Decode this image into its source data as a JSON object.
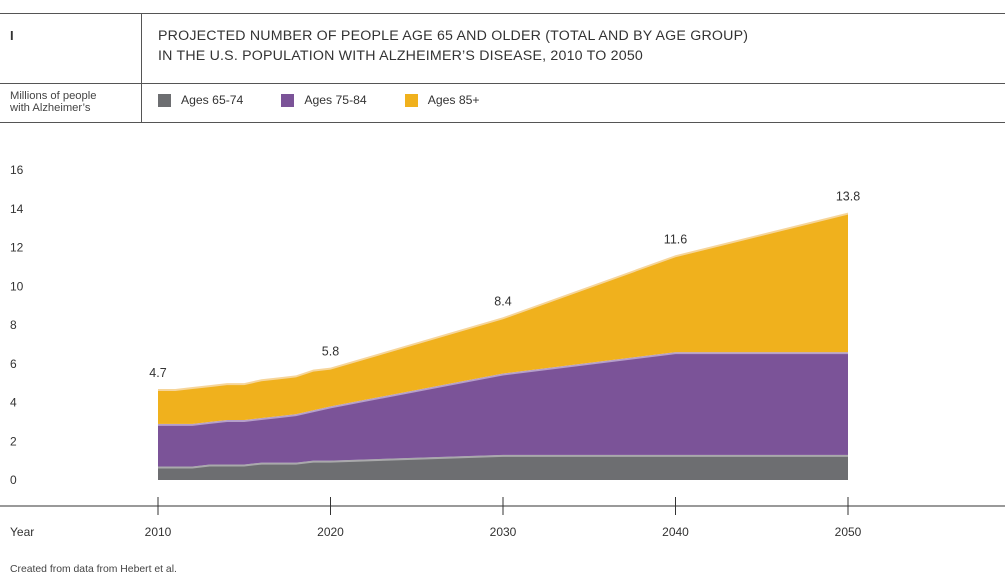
{
  "header": {
    "figure_number": "I",
    "title_line1": "PROJECTED NUMBER OF PEOPLE AGE 65 AND OLDER (TOTAL AND BY AGE GROUP)",
    "title_line2": "IN THE U.S. POPULATION WITH ALZHEIMER’S DISEASE, 2010 TO 2050",
    "ylabel_line1": "Millions of people",
    "ylabel_line2": "with Alzheimer’s"
  },
  "footer": {
    "note": "Created from data from Hebert et al."
  },
  "colors": {
    "ages_65_74": "#6d6e71",
    "ages_75_84": "#7b5398",
    "ages_85_plus": "#f0b11d",
    "band_65_74": "#a9a9ab",
    "band_75_84": "#b59fca",
    "band_85_plus": "#f6d59a"
  },
  "chart_data": {
    "type": "area",
    "stacked": true,
    "title": "PROJECTED NUMBER OF PEOPLE AGE 65 AND OLDER (TOTAL AND BY AGE GROUP) IN THE U.S. POPULATION WITH ALZHEIMER’S DISEASE, 2010 TO 2050",
    "xlabel": "Year",
    "ylabel": "Millions of people with Alzheimer’s",
    "ylim": [
      0,
      16
    ],
    "yticks": [
      0,
      2,
      4,
      6,
      8,
      10,
      12,
      14,
      16
    ],
    "xticks": [
      2010,
      2020,
      2030,
      2040,
      2050
    ],
    "xlim": [
      2010,
      2050
    ],
    "grid": false,
    "legend_position": "top",
    "x": [
      2010,
      2011,
      2012,
      2013,
      2014,
      2015,
      2016,
      2017,
      2018,
      2019,
      2020,
      2030,
      2040,
      2050
    ],
    "series": [
      {
        "name": "Ages 65-74",
        "values": [
          0.7,
          0.7,
          0.7,
          0.8,
          0.8,
          0.8,
          0.9,
          0.9,
          0.9,
          1.0,
          1.0,
          1.3,
          1.3,
          1.3
        ]
      },
      {
        "name": "Ages 75-84",
        "values": [
          2.2,
          2.2,
          2.2,
          2.2,
          2.3,
          2.3,
          2.3,
          2.4,
          2.5,
          2.6,
          2.8,
          4.2,
          5.3,
          5.3
        ]
      },
      {
        "name": "Ages 85+",
        "values": [
          1.8,
          1.8,
          1.9,
          1.9,
          1.9,
          1.9,
          2.0,
          2.0,
          2.0,
          2.1,
          2.0,
          2.9,
          5.0,
          7.2
        ]
      }
    ],
    "totals": [
      {
        "x": 2010,
        "label": "4.7"
      },
      {
        "x": 2020,
        "label": "5.8"
      },
      {
        "x": 2030,
        "label": "8.4"
      },
      {
        "x": 2040,
        "label": "11.6"
      },
      {
        "x": 2050,
        "label": "13.8"
      }
    ]
  }
}
